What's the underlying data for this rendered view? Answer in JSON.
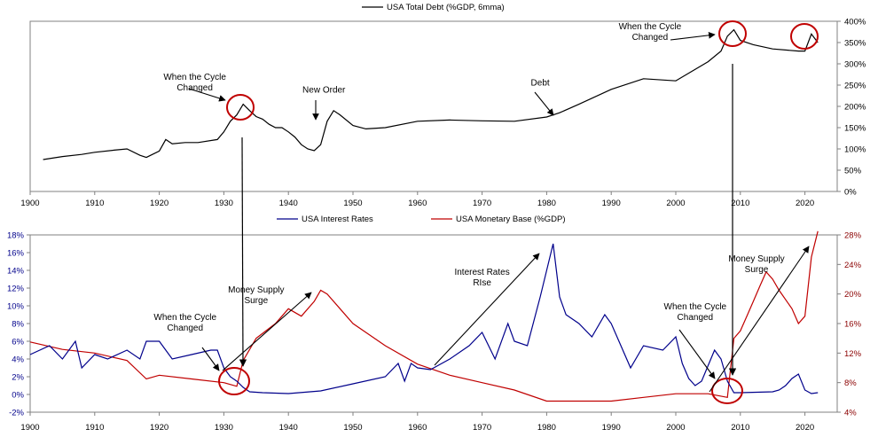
{
  "chart_data": [
    {
      "type": "line",
      "legend_placement": "top",
      "series": [
        {
          "name": "USA Total Debt (%GDP, 6mma)",
          "color": "#000000",
          "x": [
            1902,
            1905,
            1908,
            1910,
            1913,
            1915,
            1917,
            1918,
            1920,
            1921,
            1922,
            1924,
            1926,
            1929,
            1930,
            1931,
            1932,
            1933,
            1934,
            1935,
            1936,
            1937,
            1938,
            1939,
            1940,
            1941,
            1942,
            1943,
            1944,
            1945,
            1946,
            1947,
            1948,
            1950,
            1952,
            1955,
            1960,
            1965,
            1970,
            1975,
            1980,
            1982,
            1985,
            1990,
            1995,
            2000,
            2005,
            2007,
            2008,
            2009,
            2010,
            2012,
            2015,
            2019,
            2020,
            2021,
            2022
          ],
          "values": [
            75,
            82,
            87,
            92,
            97,
            100,
            85,
            80,
            95,
            122,
            112,
            115,
            115,
            122,
            140,
            165,
            180,
            205,
            190,
            176,
            170,
            158,
            150,
            150,
            140,
            128,
            110,
            100,
            96,
            110,
            165,
            190,
            180,
            155,
            147,
            150,
            165,
            168,
            166,
            165,
            175,
            185,
            205,
            240,
            265,
            260,
            305,
            330,
            365,
            380,
            355,
            345,
            335,
            330,
            330,
            370,
            350
          ]
        }
      ],
      "ylim": [
        0,
        400
      ],
      "ytick_labels": [
        "0%",
        "50%",
        "100%",
        "150%",
        "200%",
        "250%",
        "300%",
        "350%",
        "400%"
      ],
      "xlim": [
        1900,
        2025
      ],
      "xtick_labels": [
        "1900",
        "1910",
        "1920",
        "1930",
        "1940",
        "1950",
        "1960",
        "1970",
        "1980",
        "1990",
        "2000",
        "2010",
        "2020"
      ],
      "annotations": [
        {
          "lines": [
            "When the Cycle",
            "Changed"
          ],
          "x": 1925.5,
          "y": 263
        },
        {
          "lines": [
            "New Order"
          ],
          "x": 1945.5,
          "y": 232
        },
        {
          "lines": [
            "Debt"
          ],
          "x": 1979,
          "y": 249
        },
        {
          "lines": [
            "When the Cycle",
            "Changed"
          ],
          "x": 1996,
          "y": 381
        }
      ]
    },
    {
      "type": "line",
      "legend_placement": "top",
      "series": [
        {
          "name": "USA Interest Rates",
          "color": "#00008B",
          "axis": "left",
          "x": [
            1900,
            1903,
            1905,
            1907,
            1908,
            1910,
            1912,
            1915,
            1917,
            1918,
            1920,
            1921,
            1922,
            1925,
            1928,
            1929,
            1930,
            1931,
            1932,
            1933,
            1934,
            1936,
            1940,
            1945,
            1950,
            1955,
            1957,
            1958,
            1959,
            1960,
            1962,
            1965,
            1968,
            1970,
            1972,
            1974,
            1975,
            1977,
            1979,
            1980,
            1981,
            1982,
            1983,
            1985,
            1987,
            1989,
            1990,
            1993,
            1995,
            1998,
            2000,
            2001,
            2002,
            2003,
            2004,
            2006,
            2007,
            2008,
            2009,
            2010,
            2015,
            2016,
            2017,
            2018,
            2019,
            2020,
            2021,
            2022
          ],
          "values": [
            4.5,
            5.5,
            4,
            6,
            3,
            4.5,
            4,
            5,
            4,
            6,
            6,
            5,
            4,
            4.5,
            5,
            5,
            3,
            2,
            1.5,
            0.8,
            0.3,
            0.2,
            0.1,
            0.4,
            1.2,
            2,
            3.5,
            1.5,
            3.5,
            3,
            2.8,
            4,
            5.5,
            7,
            4,
            8,
            6,
            5.5,
            11,
            14,
            17,
            11,
            9,
            8,
            6.5,
            9,
            8,
            3,
            5.5,
            5,
            6.5,
            3.5,
            1.8,
            1,
            1.5,
            5,
            4,
            1.5,
            0.2,
            0.2,
            0.3,
            0.5,
            1,
            1.8,
            2.3,
            0.5,
            0.1,
            0.2
          ]
        },
        {
          "name": "USA Monetary Base (%GDP)",
          "color": "#C00000",
          "axis": "right",
          "x": [
            1900,
            1905,
            1910,
            1915,
            1918,
            1920,
            1925,
            1930,
            1932,
            1933,
            1935,
            1938,
            1940,
            1942,
            1944,
            1945,
            1946,
            1948,
            1950,
            1955,
            1960,
            1965,
            1970,
            1975,
            1980,
            1985,
            1990,
            1995,
            2000,
            2005,
            2008,
            2009,
            2010,
            2011,
            2012,
            2013,
            2014,
            2015,
            2016,
            2018,
            2019,
            2020,
            2021,
            2022
          ],
          "values": [
            13.5,
            12.5,
            12,
            11,
            8.5,
            9,
            8.5,
            8,
            7.5,
            11,
            14,
            16,
            18,
            17,
            19,
            20.5,
            20,
            18,
            16,
            13,
            10.5,
            9,
            8,
            7,
            5.5,
            5.5,
            5.5,
            6,
            6.5,
            6.5,
            6,
            14,
            15,
            17,
            19,
            21,
            23,
            22,
            20.5,
            18,
            16,
            17,
            25,
            28.5
          ]
        }
      ],
      "ylim_left": [
        -2,
        18
      ],
      "ytick_labels_left": [
        "-2%",
        "0%",
        "2%",
        "4%",
        "6%",
        "8%",
        "10%",
        "12%",
        "14%",
        "16%",
        "18%"
      ],
      "ylim_right": [
        4,
        28
      ],
      "ytick_labels_right": [
        "4%",
        "8%",
        "12%",
        "16%",
        "20%",
        "24%",
        "28%"
      ],
      "xlim": [
        1900,
        2025
      ],
      "xtick_labels": [
        "1900",
        "1910",
        "1920",
        "1930",
        "1940",
        "1950",
        "1960",
        "1970",
        "1980",
        "1990",
        "2000",
        "2010",
        "2020"
      ],
      "annotations": [
        {
          "lines": [
            "When the Cycle",
            "Changed"
          ],
          "x": 1924,
          "y": 8.4
        },
        {
          "lines": [
            "Money Supply",
            "Surge"
          ],
          "x": 1935,
          "y": 11.5
        },
        {
          "lines": [
            "Interest Rates",
            "RIse"
          ],
          "x": 1970,
          "y": 13.5
        },
        {
          "lines": [
            "When the Cycle",
            "Changed"
          ],
          "x": 2003,
          "y": 9.6
        },
        {
          "lines": [
            "Money Supply",
            "Surge"
          ],
          "x": 2012.5,
          "y": 15
        }
      ]
    }
  ]
}
